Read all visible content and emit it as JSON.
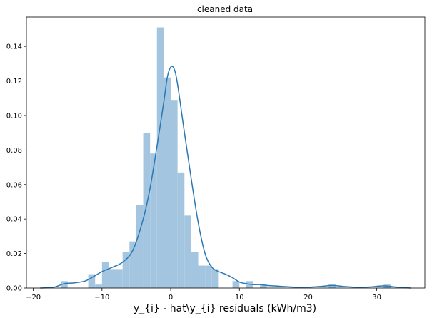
{
  "chart_data": {
    "type": "bar",
    "title": "cleaned data",
    "xlabel": "y_{i} - hat\\y_{i} residuals (kWh/m3)",
    "ylabel": "",
    "xlim": [
      -21,
      37
    ],
    "ylim": [
      0,
      0.157
    ],
    "xticks": [
      -20,
      -10,
      0,
      10,
      20,
      30
    ],
    "yticks": [
      0.0,
      0.02,
      0.04,
      0.06,
      0.08,
      0.1,
      0.12,
      0.14
    ],
    "grid": false,
    "colors": {
      "hist_fill": "#a4c5df",
      "kde_line": "#2878b5"
    },
    "histogram": {
      "bin_edges": [
        -16.0,
        -15.0,
        -14.0,
        -13.0,
        -12.0,
        -11.0,
        -10.0,
        -9.0,
        -8.0,
        -7.0,
        -6.0,
        -5.0,
        -4.0,
        -3.0,
        -2.0,
        -1.0,
        0.0,
        1.0,
        2.0,
        3.0,
        4.0,
        5.0,
        6.0,
        7.0,
        8.0,
        9.0,
        10.0,
        11.0,
        12.0,
        13.0,
        14.0,
        15.0,
        16.0,
        17.0,
        18.0,
        19.0,
        20.0,
        21.0,
        22.0,
        23.0,
        24.0,
        25.0,
        26.0,
        27.0,
        28.0,
        29.0,
        30.0,
        31.0,
        32.0,
        33.0
      ],
      "values": [
        0.004,
        0.0,
        0.0,
        0.0,
        0.008,
        0.002,
        0.015,
        0.011,
        0.011,
        0.021,
        0.027,
        0.048,
        0.09,
        0.078,
        0.151,
        0.122,
        0.109,
        0.067,
        0.042,
        0.021,
        0.013,
        0.013,
        0.011,
        0.0,
        0.0,
        0.004,
        0.0,
        0.004,
        0.0,
        0.002,
        0.0,
        0.0,
        0.0,
        0.0,
        0.0,
        0.0,
        0.0,
        0.0,
        0.0,
        0.002,
        0.0,
        0.0,
        0.0,
        0.0,
        0.0,
        0.0,
        0.0,
        0.002,
        0.0
      ]
    },
    "kde": {
      "x": [
        -19,
        -17,
        -15.5,
        -14,
        -12.5,
        -11.5,
        -10,
        -8.5,
        -7,
        -5.5,
        -4,
        -3,
        -2,
        -1,
        -0.5,
        0,
        0.5,
        1,
        2,
        3,
        4,
        5,
        6,
        7,
        8,
        9,
        10,
        11,
        12,
        13,
        14,
        16,
        18,
        20,
        22,
        23.5,
        25,
        27,
        29,
        30.5,
        31.5,
        33,
        35
      ],
      "y": [
        0.0,
        0.0005,
        0.0025,
        0.003,
        0.004,
        0.006,
        0.0095,
        0.012,
        0.015,
        0.022,
        0.04,
        0.058,
        0.082,
        0.108,
        0.122,
        0.128,
        0.127,
        0.118,
        0.09,
        0.063,
        0.038,
        0.02,
        0.012,
        0.0095,
        0.008,
        0.006,
        0.0035,
        0.0025,
        0.002,
        0.002,
        0.0015,
        0.001,
        0.0005,
        0.0005,
        0.001,
        0.0015,
        0.001,
        0.0004,
        0.0006,
        0.0012,
        0.0012,
        0.0005,
        0.0
      ]
    }
  }
}
